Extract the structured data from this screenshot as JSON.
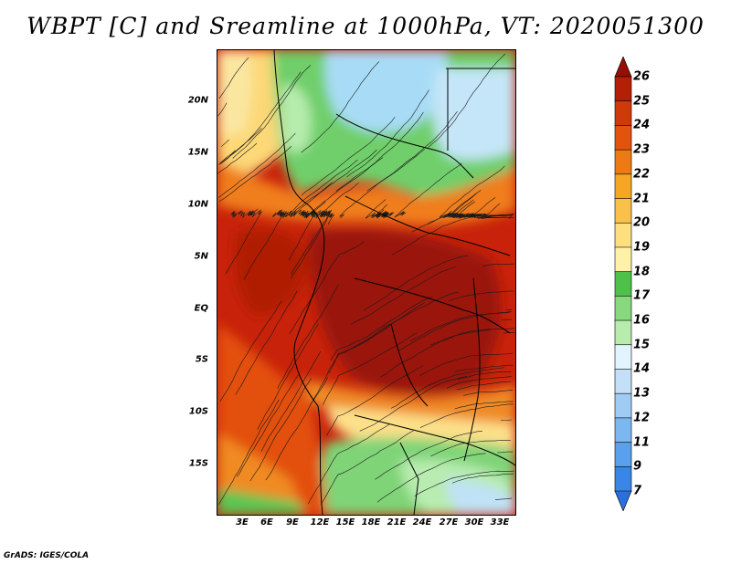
{
  "title": "WBPT [C] and Sreamline at 1000hPa, VT: 2020051300",
  "latitude_labels": [
    "20N",
    "15N",
    "10N",
    "5N",
    "EQ",
    "5S",
    "10S",
    "15S"
  ],
  "longitude_labels": [
    "3E",
    "6E",
    "9E",
    "12E",
    "15E",
    "18E",
    "21E",
    "24E",
    "27E",
    "30E",
    "33E"
  ],
  "colorbar": {
    "levels": [
      "7",
      "9",
      "11",
      "12",
      "13",
      "14",
      "15",
      "16",
      "17",
      "18",
      "19",
      "20",
      "21",
      "22",
      "23",
      "24",
      "25",
      "26"
    ],
    "colors": [
      "#2a6fdb",
      "#3a86e6",
      "#5aa0ec",
      "#7cb8f0",
      "#a0ccf4",
      "#c3e0f8",
      "#e2f4ff",
      "#b7ecae",
      "#86d97c",
      "#4fc04a",
      "#fff2a8",
      "#fddf80",
      "#f9c149",
      "#f5a623",
      "#ee7a14",
      "#e4530e",
      "#d03a0a",
      "#b51f06",
      "#960f04"
    ]
  },
  "credit": "GrADS: IGES/COLA"
}
